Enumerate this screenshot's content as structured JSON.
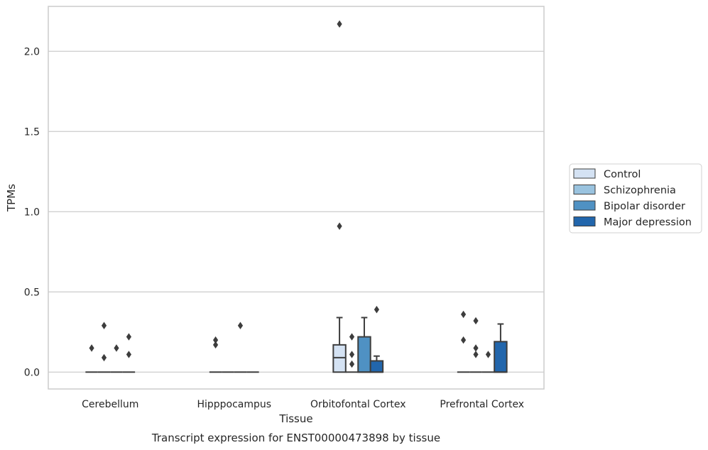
{
  "chart_data": {
    "type": "box",
    "title": "Transcript expression for ENST00000473898 by tissue",
    "xlabel": "Tissue",
    "ylabel": "TPMs",
    "ylim": [
      -0.105,
      2.28
    ],
    "yticks": [
      "0.0",
      "0.5",
      "1.0",
      "1.5",
      "2.0"
    ],
    "grid": "horizontal",
    "legend_position": "right",
    "categories": [
      "Cerebellum",
      "Hipppocampus",
      "Orbitofontal Cortex",
      "Prefrontal Cortex"
    ],
    "series": [
      {
        "name": "Control",
        "color": "#d4e2f3",
        "boxes": [
          {
            "q1": 0,
            "median": 0,
            "q3": 0,
            "whisker_low": 0,
            "whisker_high": 0,
            "outliers": [
              0.15
            ]
          },
          {
            "q1": 0,
            "median": 0,
            "q3": 0,
            "whisker_low": 0,
            "whisker_high": 0,
            "outliers": [
              0.2,
              0.17
            ]
          },
          {
            "q1": 0,
            "median": 0.09,
            "q3": 0.17,
            "whisker_low": 0,
            "whisker_high": 0.34,
            "outliers": [
              2.17,
              0.91
            ]
          },
          {
            "q1": 0,
            "median": 0,
            "q3": 0,
            "whisker_low": 0,
            "whisker_high": 0,
            "outliers": [
              0.36,
              0.2
            ]
          }
        ]
      },
      {
        "name": "Schizophrenia",
        "color": "#9ac3df",
        "boxes": [
          {
            "q1": 0,
            "median": 0,
            "q3": 0,
            "whisker_low": 0,
            "whisker_high": 0,
            "outliers": [
              0.29,
              0.09
            ]
          },
          {
            "q1": 0,
            "median": 0,
            "q3": 0,
            "whisker_low": 0,
            "whisker_high": 0,
            "outliers": []
          },
          {
            "q1": 0,
            "median": 0,
            "q3": 0,
            "whisker_low": 0,
            "whisker_high": 0,
            "outliers": [
              0.22,
              0.11,
              0.05
            ]
          },
          {
            "q1": 0,
            "median": 0,
            "q3": 0,
            "whisker_low": 0,
            "whisker_high": 0,
            "outliers": [
              0.32,
              0.15,
              0.11
            ]
          }
        ]
      },
      {
        "name": "Bipolar disorder",
        "color": "#4f91c3",
        "boxes": [
          {
            "q1": 0,
            "median": 0,
            "q3": 0,
            "whisker_low": 0,
            "whisker_high": 0,
            "outliers": [
              0.15
            ]
          },
          {
            "q1": 0,
            "median": 0,
            "q3": 0,
            "whisker_low": 0,
            "whisker_high": 0,
            "outliers": [
              0.29
            ]
          },
          {
            "q1": 0,
            "median": 0,
            "q3": 0.22,
            "whisker_low": 0,
            "whisker_high": 0.34,
            "outliers": []
          },
          {
            "q1": 0,
            "median": 0,
            "q3": 0,
            "whisker_low": 0,
            "whisker_high": 0,
            "outliers": [
              0.11
            ]
          }
        ]
      },
      {
        "name": "Major depression",
        "color": "#2266ac",
        "boxes": [
          {
            "q1": 0,
            "median": 0,
            "q3": 0,
            "whisker_low": 0,
            "whisker_high": 0,
            "outliers": [
              0.22,
              0.11
            ]
          },
          {
            "q1": 0,
            "median": 0,
            "q3": 0,
            "whisker_low": 0,
            "whisker_high": 0,
            "outliers": []
          },
          {
            "q1": 0,
            "median": 0,
            "q3": 0.07,
            "whisker_low": 0,
            "whisker_high": 0.1,
            "outliers": [
              0.39
            ]
          },
          {
            "q1": 0,
            "median": 0,
            "q3": 0.19,
            "whisker_low": 0,
            "whisker_high": 0.3,
            "outliers": []
          }
        ]
      }
    ]
  }
}
